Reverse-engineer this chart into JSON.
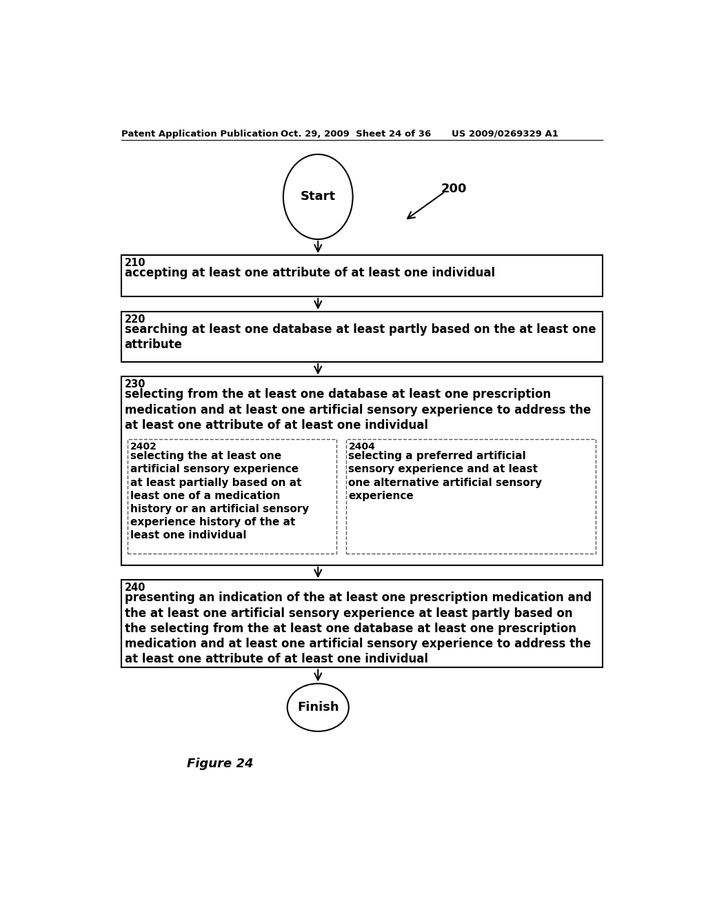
{
  "header_left": "Patent Application Publication",
  "header_center": "Oct. 29, 2009  Sheet 24 of 36",
  "header_right": "US 2009/0269329 A1",
  "figure_label": "Figure 24",
  "diagram_label": "200",
  "start_label": "Start",
  "finish_label": "Finish",
  "box210_label": "210",
  "box210_text": "accepting at least one attribute of at least one individual",
  "box220_label": "220",
  "box220_text": "searching at least one database at least partly based on the at least one\nattribute",
  "box230_label": "230",
  "box230_text": "selecting from the at least one database at least one prescription\nmedication and at least one artificial sensory experience to address the\nat least one attribute of at least one individual",
  "box2402_label": "2402",
  "box2402_text": "selecting the at least one\nartificial sensory experience\nat least partially based on at\nleast one of a medication\nhistory or an artificial sensory\nexperience history of the at\nleast one individual",
  "box2404_label": "2404",
  "box2404_text": "selecting a preferred artificial\nsensory experience and at least\none alternative artificial sensory\nexperience",
  "box240_label": "240",
  "box240_text": "presenting an indication of the at least one prescription medication and\nthe at least one artificial sensory experience at least partly based on\nthe selecting from the at least one database at least one prescription\nmedication and at least one artificial sensory experience to address the\nat least one attribute of at least one individual",
  "bg_color": "#ffffff",
  "text_color": "#000000",
  "box_edge_color": "#000000"
}
